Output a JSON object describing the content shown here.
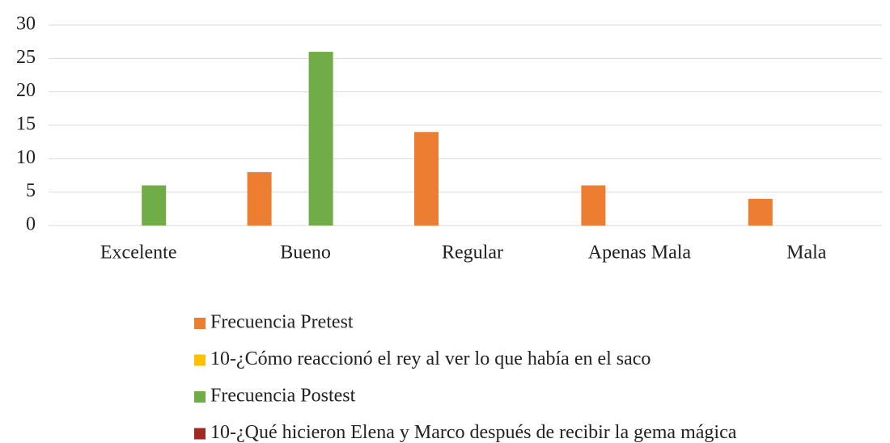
{
  "chart_data": {
    "type": "bar",
    "categories": [
      "Excelente",
      "Bueno",
      "Regular",
      "Apenas Mala",
      "Mala"
    ],
    "series": [
      {
        "name": "Frecuencia Pretest",
        "color": "#ed7d31",
        "values": [
          0,
          8,
          14,
          6,
          4
        ]
      },
      {
        "name": "10-¿Cómo reaccionó el rey al ver lo que había en el saco",
        "color": "#ffc000",
        "values": [
          0,
          0,
          0,
          0,
          0
        ]
      },
      {
        "name": "Frecuencia Postest",
        "color": "#70ad47",
        "values": [
          6,
          26,
          0,
          0,
          0
        ]
      },
      {
        "name": "10-¿Qué hicieron Elena y Marco después de recibir la gema mágica",
        "color": "#9e2a22",
        "values": [
          0,
          0,
          0,
          0,
          0
        ]
      }
    ],
    "ylim": [
      0,
      30
    ],
    "yticks": [
      0,
      5,
      10,
      15,
      20,
      25,
      30
    ],
    "grid": true,
    "legend": "bottom"
  }
}
